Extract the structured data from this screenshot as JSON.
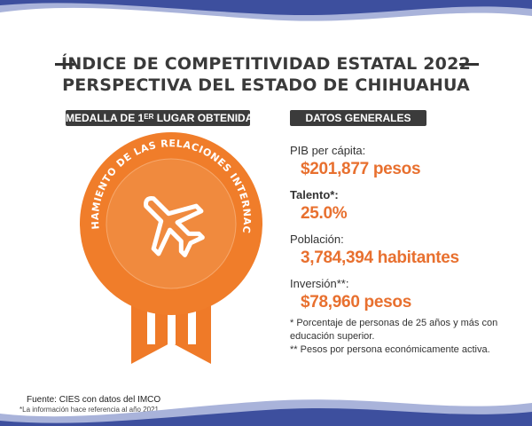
{
  "header": {
    "title_line1": "ÍNDICE DE COMPETITIVIDAD ESTATAL 2022",
    "title_line2": "PERSPECTIVA DEL ESTADO DE CHIHUAHUA"
  },
  "medal_section": {
    "label_prefix": "MEDALLA  DE 1",
    "label_sup": "ER",
    "label_suffix": " LUGAR OBTENIDA",
    "medal_text": "APROVECHAMIENTO DE LAS RELACIONES INTERNACIONALES",
    "medal_icon": "airplane-icon",
    "medal_color": "#f07d2a"
  },
  "general_section": {
    "label": "DATOS GENERALES",
    "items": [
      {
        "label": "PIB per cápita:",
        "value": "$201,877 pesos"
      },
      {
        "label": "Talento*:",
        "value": "25.0%"
      },
      {
        "label": "Población:",
        "value": "3,784,394 habitantes"
      },
      {
        "label": "Inversión**:",
        "value": "$78,960 pesos"
      }
    ],
    "note1": "* Porcentaje de personas de 25 años y más con educación superior.",
    "note2": "** Pesos por persona económicamente activa."
  },
  "footer": {
    "source": "Fuente: CIES con datos del IMCO",
    "note": "*La información hace referencia al año 2021."
  },
  "colors": {
    "accent": "#e8702f",
    "wave_blue": "#3d4f9e",
    "wave_light": "#a9b3da"
  }
}
